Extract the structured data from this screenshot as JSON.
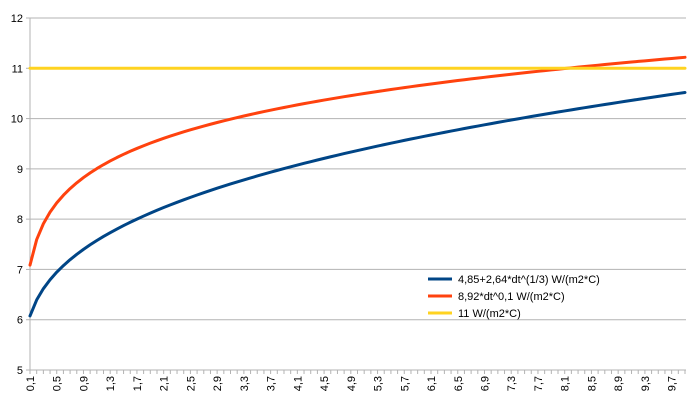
{
  "chart_data": {
    "type": "line",
    "title": "",
    "xlabel": "",
    "ylabel": "",
    "x_start": 0.1,
    "x_end": 9.9,
    "x_step": 0.1,
    "ylim": [
      5,
      12
    ],
    "yticks": [
      5,
      6,
      7,
      8,
      9,
      10,
      11,
      12
    ],
    "xtick_labels": [
      "0,1",
      "0,5",
      "0,9",
      "1,3",
      "1,7",
      "2,1",
      "2,5",
      "2,9",
      "3,3",
      "3,7",
      "4,1",
      "4,5",
      "4,9",
      "5,3",
      "5,7",
      "6,1",
      "6,5",
      "6,9",
      "7,3",
      "7,7",
      "8,1",
      "8,5",
      "8,9",
      "9,3",
      "9,7"
    ],
    "grid": "horizontal",
    "legend_position": "lower-right",
    "series": [
      {
        "name": "4,85+2,64*dt^(1/3) W/(m2*C)",
        "color": "#004586",
        "formula": "4.85 + 2.64*x^(1/3)"
      },
      {
        "name": "8,92*dt^0,1 W/(m2*C)",
        "color": "#ff420e",
        "formula": "8.92*x^0.1"
      },
      {
        "name": "11 W/(m2*C)",
        "color": "#ffd320",
        "formula": "11"
      }
    ]
  }
}
